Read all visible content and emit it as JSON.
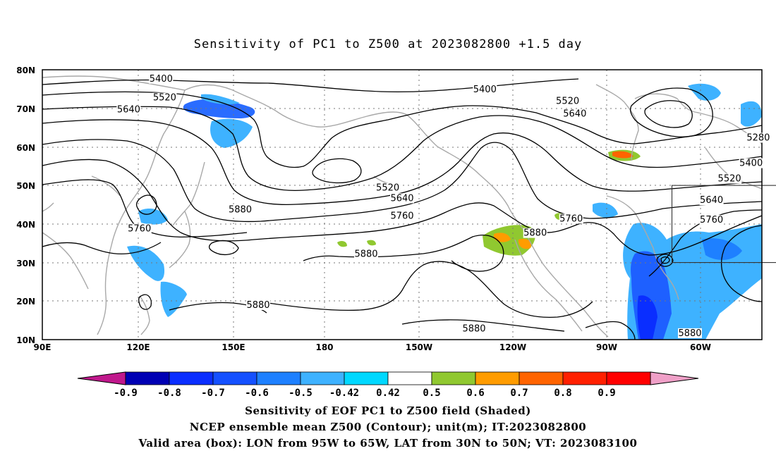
{
  "title": "Sensitivity of PC1 to Z500 at 2023082800 +1.5 day",
  "lon_labels": [
    "90E",
    "120E",
    "150E",
    "180",
    "150W",
    "120W",
    "90W",
    "60W"
  ],
  "lat_labels": [
    "80N",
    "70N",
    "60N",
    "50N",
    "40N",
    "30N",
    "20N",
    "10N"
  ],
  "contour_labels": [
    {
      "text": "5400",
      "lon": 123,
      "lat": 77.3
    },
    {
      "text": "5400",
      "lon": -147,
      "lat": 74.5
    },
    {
      "text": "5520",
      "lon": 124,
      "lat": 72.4
    },
    {
      "text": "5640",
      "lon": 114,
      "lat": 69.3
    },
    {
      "text": "5520",
      "lon": -124,
      "lat": 71.5
    },
    {
      "text": "5640",
      "lon": -122,
      "lat": 68.2
    },
    {
      "text": "5280",
      "lon": -71,
      "lat": 62.0
    },
    {
      "text": "5400",
      "lon": -73,
      "lat": 55.4
    },
    {
      "text": "5520",
      "lon": -79,
      "lat": 51.4
    },
    {
      "text": "5640",
      "lon": -84,
      "lat": 45.8
    },
    {
      "text": "5760",
      "lon": -84,
      "lat": 40.7
    },
    {
      "text": "5520",
      "lon": -174,
      "lat": 49.0
    },
    {
      "text": "5640",
      "lon": -170,
      "lat": 46.3
    },
    {
      "text": "5760",
      "lon": -123,
      "lat": 41.0
    },
    {
      "text": "5760",
      "lon": -170,
      "lat": 41.7
    },
    {
      "text": "5880",
      "lon": -133,
      "lat": 37.3
    },
    {
      "text": "5880",
      "lon": 145,
      "lat": 43.4
    },
    {
      "text": "5760",
      "lon": 117,
      "lat": 38.4
    },
    {
      "text": "5880",
      "lon": -180,
      "lat": 31.8
    },
    {
      "text": "5880",
      "lon": 150,
      "lat": 18.6
    },
    {
      "text": "5880",
      "lon": -150,
      "lat": 12.5
    },
    {
      "text": "5880",
      "lon": -90,
      "lat": 11.3
    }
  ],
  "colorbar": {
    "labels": [
      "-0.9",
      "-0.8",
      "-0.7",
      "-0.6",
      "-0.5",
      "-0.42",
      "0.42",
      "0.5",
      "0.6",
      "0.7",
      "0.8",
      "0.9"
    ],
    "low_triangle": "#c0188c",
    "high_triangle": "#f0a0c8",
    "colors": [
      "#0000b4",
      "#0a2eff",
      "#1450ff",
      "#1e80ff",
      "#3eb2ff",
      "#00d8ff",
      "#ffffff",
      "#90c830",
      "#ff9c00",
      "#ff6400",
      "#ff2000",
      "#ff0000"
    ]
  },
  "captions": [
    "Sensitivity of EOF PC1 to Z500 field (Shaded)",
    "NCEP ensemble mean Z500 (Contour); unit(m); IT:2023082800",
    "Valid area (box): LON from 95W to 65W, LAT from 30N to 50N; VT: 2023083100"
  ],
  "valid_box": {
    "lon_min": -95,
    "lon_max": -65,
    "lat_min": 30,
    "lat_max": 50
  },
  "colors": {
    "contour": "#000000",
    "coastline": "#a8a8a8",
    "grid": "#777777"
  }
}
